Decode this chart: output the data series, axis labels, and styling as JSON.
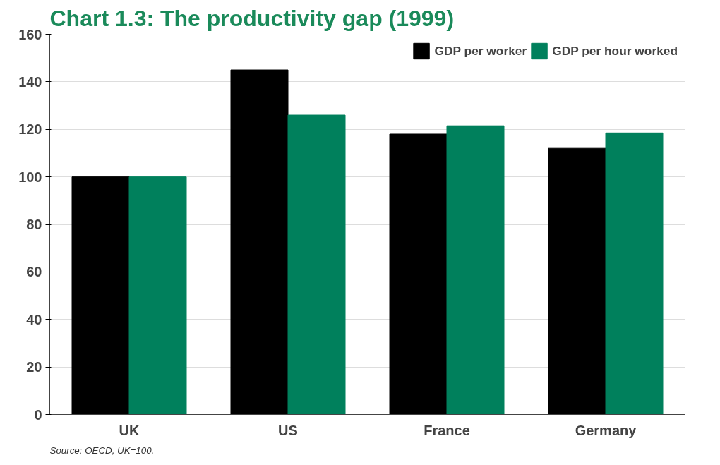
{
  "chart_data": {
    "type": "bar",
    "title": "Chart 1.3: The productivity gap (1999)",
    "categories": [
      "UK",
      "US",
      "France",
      "Germany"
    ],
    "series": [
      {
        "name": "GDP per worker",
        "color": "#000000",
        "values": [
          100,
          145,
          118,
          112
        ]
      },
      {
        "name": "GDP per hour worked",
        "color": "#00805c",
        "values": [
          100,
          126,
          121.5,
          118.5
        ]
      }
    ],
    "ylim": [
      0,
      160
    ],
    "yticks": [
      0,
      20,
      40,
      60,
      80,
      100,
      120,
      140,
      160
    ],
    "grid": "y",
    "legend": "top right",
    "annotations": [
      "Source: OECD, UK=100."
    ]
  }
}
